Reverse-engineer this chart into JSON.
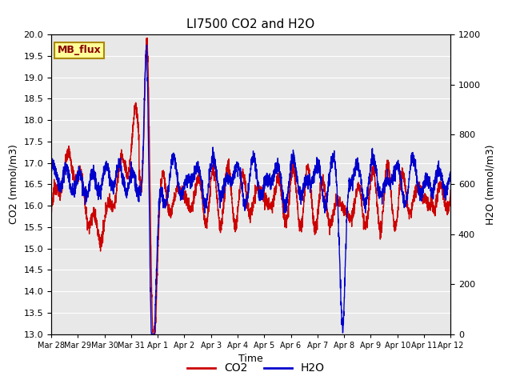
{
  "title": "LI7500 CO2 and H2O",
  "xlabel": "Time",
  "ylabel_left": "CO2 (mmol/m3)",
  "ylabel_right": "H2O (mmol/m3)",
  "ylim_left": [
    13.0,
    20.0
  ],
  "ylim_right": [
    0,
    1200
  ],
  "co2_color": "#cc0000",
  "h2o_color": "#0000cc",
  "fig_bg_color": "#ffffff",
  "plot_bg_color": "#e8e8e8",
  "grid_color": "#ffffff",
  "annotation_text": "MB_flux",
  "annotation_bg": "#ffff99",
  "annotation_border": "#aa8800",
  "annotation_text_color": "#880000",
  "legend_co2": "CO2",
  "legend_h2o": "H2O",
  "tick_labels": [
    "Mar 28",
    "Mar 29",
    "Mar 30",
    "Mar 31",
    "Apr 1",
    "Apr 2",
    "Apr 3",
    "Apr 4",
    "Apr 5",
    "Apr 6",
    "Apr 7",
    "Apr 8",
    "Apr 9",
    "Apr 10",
    "Apr 11",
    "Apr 12"
  ],
  "yticks_left": [
    13.0,
    13.5,
    14.0,
    14.5,
    15.0,
    15.5,
    16.0,
    16.5,
    17.0,
    17.5,
    18.0,
    18.5,
    19.0,
    19.5,
    20.0
  ],
  "yticks_right": [
    0,
    200,
    400,
    600,
    800,
    1000,
    1200
  ],
  "linewidth": 1.0,
  "title_fontsize": 11,
  "label_fontsize": 9,
  "tick_fontsize": 8,
  "xtick_fontsize": 7,
  "legend_fontsize": 10
}
